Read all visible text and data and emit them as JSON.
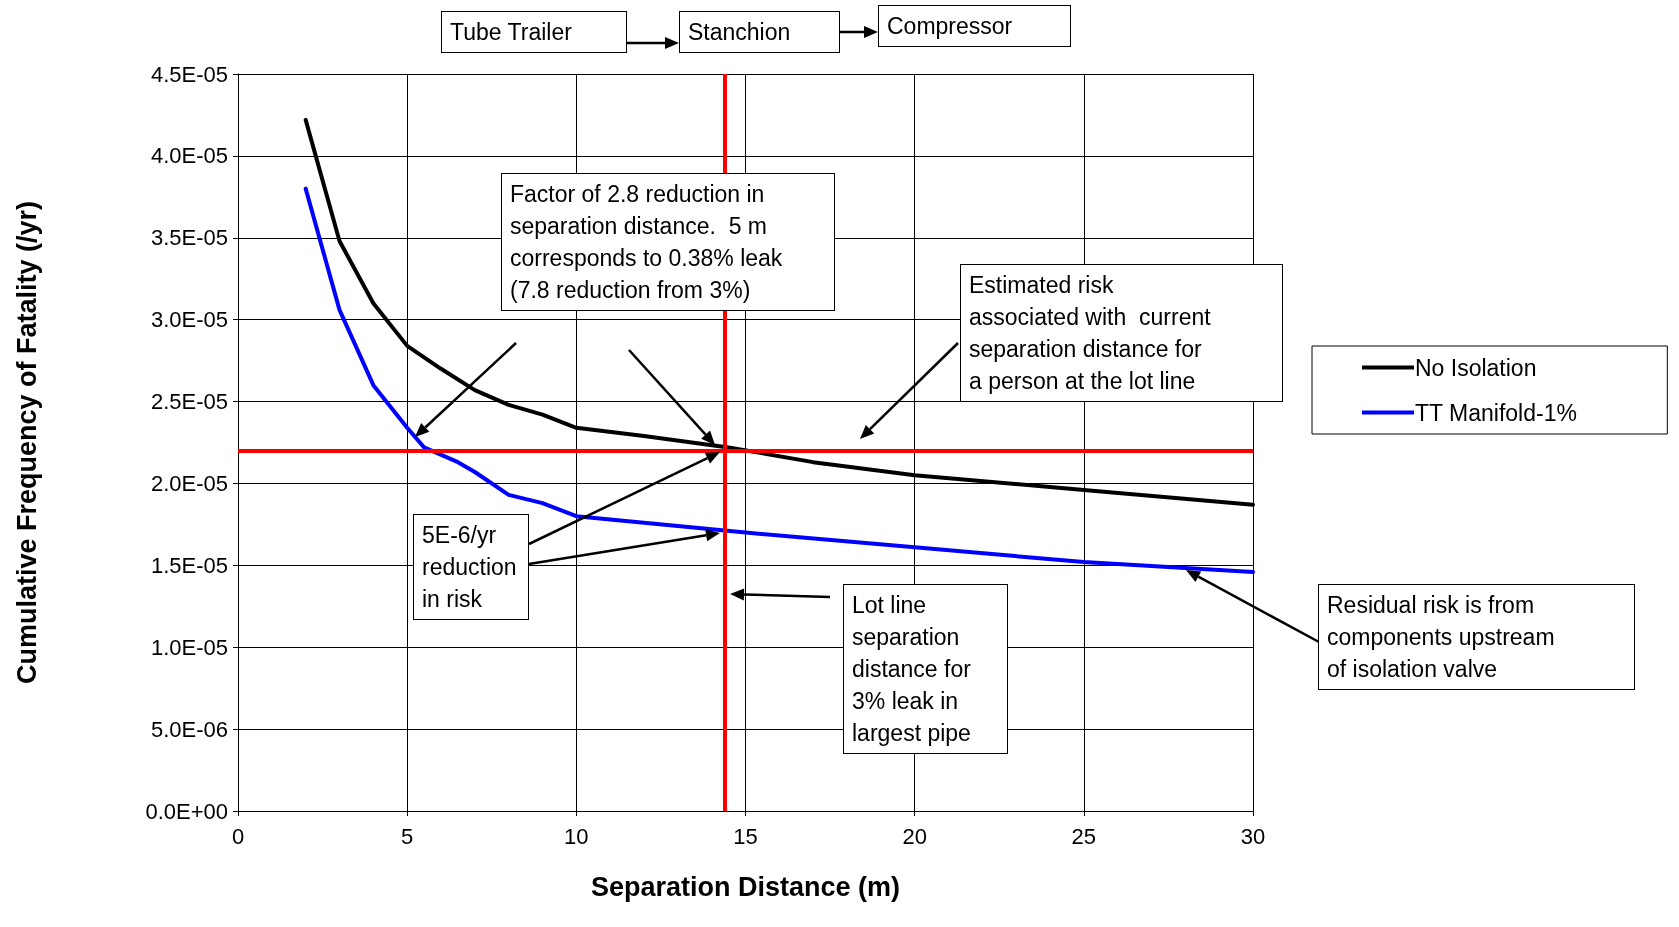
{
  "chart_data": {
    "type": "line",
    "xlabel": "Separation Distance (m)",
    "ylabel": "Cumulative Frequency of Fatality (/yr)",
    "xlim": [
      0,
      30
    ],
    "xticks": [
      0,
      5,
      10,
      15,
      20,
      25,
      30
    ],
    "ylim": [
      0,
      4.5e-05
    ],
    "yticks": [
      {
        "value": 0,
        "label": "0.0E+00"
      },
      {
        "value": 5e-06,
        "label": "5.0E-06"
      },
      {
        "value": 1e-05,
        "label": "1.0E-05"
      },
      {
        "value": 1.5e-05,
        "label": "1.5E-05"
      },
      {
        "value": 2e-05,
        "label": "2.0E-05"
      },
      {
        "value": 2.5e-05,
        "label": "2.5E-05"
      },
      {
        "value": 3e-05,
        "label": "3.0E-05"
      },
      {
        "value": 3.5e-05,
        "label": "3.5E-05"
      },
      {
        "value": 4e-05,
        "label": "4.0E-05"
      },
      {
        "value": 4.5e-05,
        "label": "4.5E-05"
      }
    ],
    "grid": true,
    "legend": "right",
    "marker": "none",
    "line_style": "solid",
    "series": [
      {
        "name": "No Isolation",
        "color": "#000000",
        "x": [
          2,
          3,
          4,
          5,
          6,
          7,
          8,
          9,
          10,
          12,
          14.5,
          17,
          20,
          25,
          30
        ],
        "values": [
          4.22e-05,
          3.48e-05,
          3.1e-05,
          2.84e-05,
          2.7e-05,
          2.57e-05,
          2.48e-05,
          2.42e-05,
          2.34e-05,
          2.29e-05,
          2.22e-05,
          2.13e-05,
          2.05e-05,
          1.96e-05,
          1.87e-05
        ]
      },
      {
        "name": "TT Manifold-1%",
        "color": "#0000ff",
        "x": [
          2,
          3,
          4,
          5,
          5.5,
          6.5,
          7,
          8,
          9,
          10,
          15,
          20,
          25,
          30
        ],
        "values": [
          3.8e-05,
          3.06e-05,
          2.6e-05,
          2.34e-05,
          2.22e-05,
          2.13e-05,
          2.07e-05,
          1.93e-05,
          1.88e-05,
          1.8e-05,
          1.7e-05,
          1.61e-05,
          1.52e-05,
          1.46e-05
        ]
      }
    ],
    "ref_lines": [
      {
        "axis": "y",
        "value": 2.2e-05,
        "color": "#ff0000"
      },
      {
        "axis": "x",
        "value": 14.4,
        "color": "#ff0000"
      }
    ],
    "annotations": [
      "Tube Trailer",
      "Stanchion",
      "Compressor",
      "Factor of 2.8 reduction in\nseparation distance.  5 m\ncorresponds to 0.38% leak\n(7.8 reduction from 3%)",
      "Estimated risk\nassociated with  current\nseparation distance for\na person at the lot line",
      "5E-6/yr\nreduction\nin risk",
      "Lot line\nseparation\ndistance for\n3% leak in\nlargest pipe",
      "Residual risk is from\ncomponents upstream\nof isolation valve"
    ]
  }
}
